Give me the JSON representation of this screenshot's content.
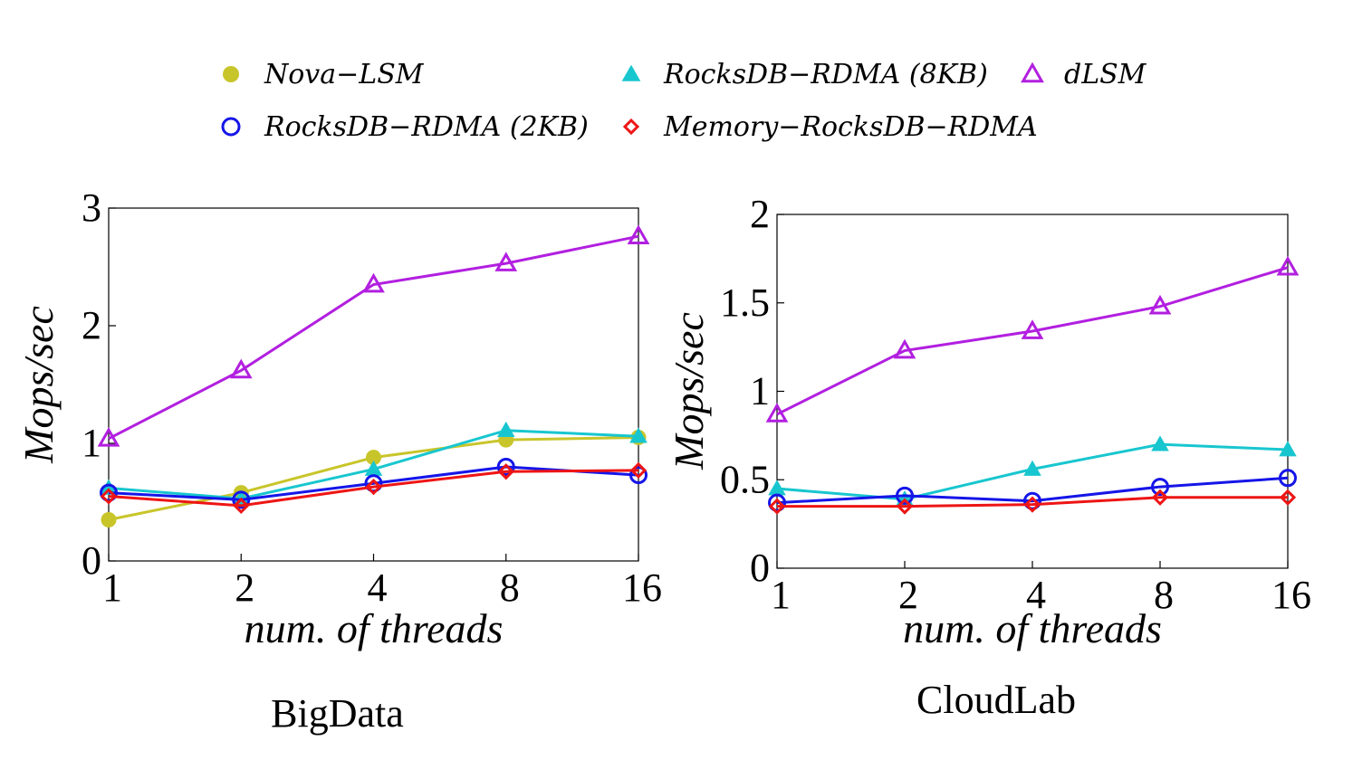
{
  "legend": {
    "entries": [
      {
        "key": "nova",
        "label": "Nova−LSM",
        "color": "#c8c52a",
        "marker": "filled-circle"
      },
      {
        "key": "rocks8",
        "label": "RocksDB−RDMA (8KB)",
        "color": "#18c6cf",
        "marker": "filled-triangle"
      },
      {
        "key": "dlsm",
        "label": "dLSM",
        "color": "#b21fe0",
        "marker": "open-triangle"
      },
      {
        "key": "rocks2",
        "label": "RocksDB−RDMA (2KB)",
        "color": "#1515e8",
        "marker": "open-circle"
      },
      {
        "key": "memrocks",
        "label": "Memory−RocksDB−RDMA",
        "color": "#ee1515",
        "marker": "open-diamond"
      }
    ]
  },
  "chart_data": [
    {
      "type": "line",
      "title": "BigData",
      "xlabel": "num. of threads",
      "ylabel": "Mops/sec",
      "categories": [
        "1",
        "2",
        "4",
        "8",
        "16"
      ],
      "ylim": [
        0,
        3
      ],
      "yticks": [
        "0",
        "1",
        "2",
        "3"
      ],
      "grid": false,
      "series": [
        {
          "name": "Nova−LSM",
          "key": "nova",
          "values": [
            0.35,
            0.58,
            0.88,
            1.03,
            1.05
          ]
        },
        {
          "name": "RocksDB−RDMA (8KB)",
          "key": "rocks8",
          "values": [
            0.62,
            0.53,
            0.78,
            1.11,
            1.06
          ]
        },
        {
          "name": "dLSM",
          "key": "dlsm",
          "values": [
            1.04,
            1.62,
            2.35,
            2.53,
            2.76
          ]
        },
        {
          "name": "RocksDB−RDMA (2KB)",
          "key": "rocks2",
          "values": [
            0.58,
            0.52,
            0.66,
            0.8,
            0.73
          ]
        },
        {
          "name": "Memory−RocksDB−RDMA",
          "key": "memrocks",
          "values": [
            0.55,
            0.47,
            0.63,
            0.76,
            0.77
          ]
        }
      ]
    },
    {
      "type": "line",
      "title": "CloudLab",
      "xlabel": "num. of threads",
      "ylabel": "Mops/sec",
      "categories": [
        "1",
        "2",
        "4",
        "8",
        "16"
      ],
      "ylim": [
        0,
        2
      ],
      "yticks": [
        "0",
        "0.5",
        "1",
        "1.5",
        "2"
      ],
      "grid": false,
      "series": [
        {
          "name": "RocksDB−RDMA (8KB)",
          "key": "rocks8",
          "values": [
            0.45,
            0.39,
            0.56,
            0.7,
            0.67
          ]
        },
        {
          "name": "dLSM",
          "key": "dlsm",
          "values": [
            0.87,
            1.23,
            1.34,
            1.48,
            1.7
          ]
        },
        {
          "name": "RocksDB−RDMA (2KB)",
          "key": "rocks2",
          "values": [
            0.37,
            0.41,
            0.38,
            0.46,
            0.51
          ]
        },
        {
          "name": "Memory−RocksDB−RDMA",
          "key": "memrocks",
          "values": [
            0.35,
            0.35,
            0.36,
            0.4,
            0.4
          ]
        }
      ]
    }
  ]
}
